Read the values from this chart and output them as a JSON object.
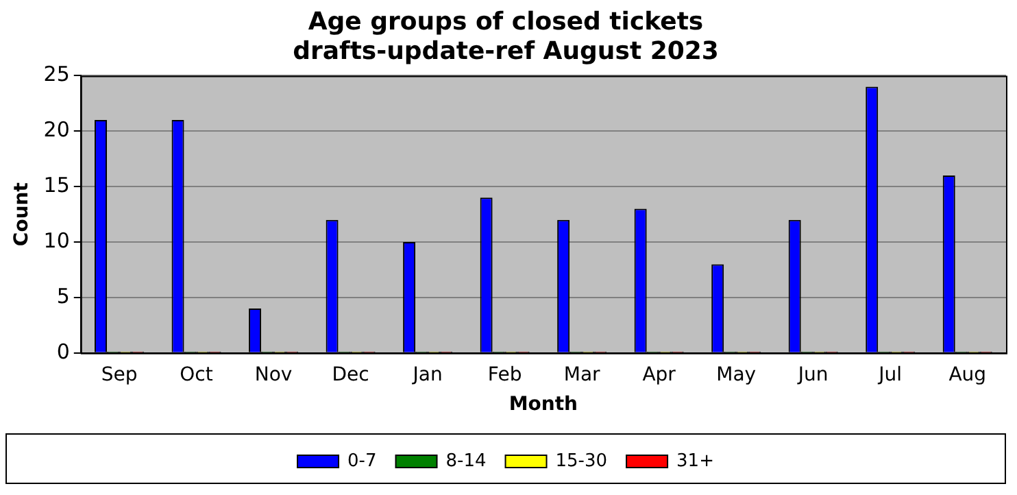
{
  "chart_data": {
    "type": "bar",
    "title": "Age groups of closed tickets\ndrafts-update-ref August 2023",
    "xlabel": "Month",
    "ylabel": "Count",
    "categories": [
      "Sep",
      "Oct",
      "Nov",
      "Dec",
      "Jan",
      "Feb",
      "Mar",
      "Apr",
      "May",
      "Jun",
      "Jul",
      "Aug"
    ],
    "series": [
      {
        "name": "0-7",
        "color": "#0000ff",
        "values": [
          21,
          21,
          4,
          12,
          10,
          14,
          12,
          13,
          8,
          12,
          24,
          16
        ]
      },
      {
        "name": "8-14",
        "color": "#008000",
        "values": [
          0,
          0,
          0,
          0,
          0,
          0,
          0,
          0,
          0,
          0,
          0,
          0
        ]
      },
      {
        "name": "15-30",
        "color": "#ffff00",
        "values": [
          0,
          0,
          0,
          0,
          0,
          0,
          0,
          0,
          0,
          0,
          0,
          0
        ]
      },
      {
        "name": "31+",
        "color": "#ff0000",
        "values": [
          0,
          0,
          0,
          0,
          0,
          0,
          0,
          0,
          0,
          0,
          0,
          0
        ]
      }
    ],
    "ylim": [
      0,
      25
    ],
    "yticks": [
      0,
      5,
      10,
      15,
      20,
      25
    ],
    "grid": "y",
    "legend": "bottom"
  }
}
